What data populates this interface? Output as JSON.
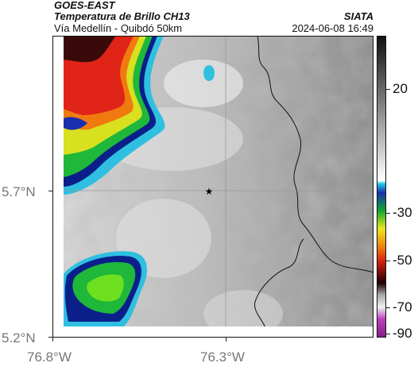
{
  "header": {
    "satellite": "GOES-EAST",
    "product": "Temperatura de Brillo CH13",
    "org": "SIATA",
    "region": "Vía Medellín - Quibdó 50km",
    "timestamp": "2024-06-08 16:49"
  },
  "axes": {
    "lat_labels": [
      "5.7°N",
      "5.2°N"
    ],
    "lon_labels": [
      "76.8°W",
      "76.3°W"
    ]
  },
  "colorbar": {
    "labels": [
      "20",
      "-30",
      "-50",
      "-70",
      "-90"
    ]
  },
  "marker": {
    "icon": "star-icon"
  },
  "colors": {
    "grid": "#9a9a9a",
    "border": "#111111"
  }
}
